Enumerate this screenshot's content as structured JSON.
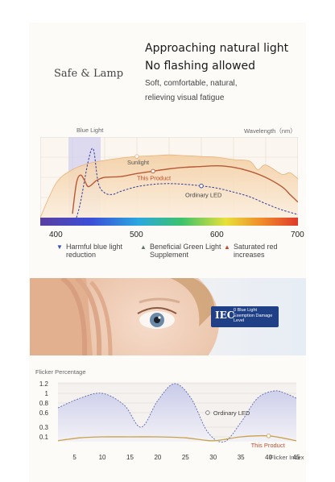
{
  "header": {
    "brand": "Safe & Lamp",
    "headline1": "Approaching natural light",
    "headline2": "No flashing allowed",
    "desc1": "Soft, comfortable, natural,",
    "desc2": "relieving visual fatigue"
  },
  "spectrum_labels": {
    "blue_light": "Blue Light",
    "wavelength": "Wavelength（nm）",
    "sunlight": "Sunlight",
    "this_product": "This Product",
    "ordinary_led": "Ordinary LED"
  },
  "legend": [
    {
      "line1": "Harmful blue light",
      "line2": "reduction",
      "color": "#3a4fb5"
    },
    {
      "line1": "Beneficial Green Light",
      "line2": "Supplement",
      "color": "#5a7a6a"
    },
    {
      "line1": "Saturated red",
      "line2": "increases",
      "color": "#c24a2a"
    }
  ],
  "iec": {
    "logo": "IEC",
    "line1": "0 Blue Light",
    "line2": "Exemption Damage",
    "line3": "Level"
  },
  "flicker_labels": {
    "ordinary_led": "Ordinary LED",
    "this_product": "This Product"
  },
  "chart_data": [
    {
      "type": "line",
      "title": "",
      "xlabel": "Wavelength（nm）",
      "ylabel": "",
      "xlim": [
        380,
        700
      ],
      "x_ticks": [
        400,
        500,
        600,
        700
      ],
      "grid": true,
      "highlight_band": {
        "label": "Blue Light",
        "x_range": [
          415,
          455
        ]
      },
      "series": [
        {
          "name": "Sunlight",
          "color": "#e8b27a",
          "x": [
            380,
            400,
            420,
            440,
            460,
            480,
            500,
            520,
            540,
            560,
            580,
            600,
            620,
            640,
            650,
            660,
            680,
            690,
            700
          ],
          "y": [
            0.0,
            0.45,
            0.62,
            0.7,
            0.74,
            0.77,
            0.79,
            0.8,
            0.81,
            0.8,
            0.79,
            0.78,
            0.75,
            0.73,
            0.62,
            0.68,
            0.56,
            0.58,
            0.5
          ]
        },
        {
          "name": "This Product",
          "color": "#b85a35",
          "x": [
            420,
            425,
            430,
            435,
            440,
            450,
            460,
            480,
            500,
            520,
            540,
            560,
            580,
            600,
            620,
            640,
            660,
            680,
            690,
            700
          ],
          "y": [
            0.05,
            0.45,
            0.55,
            0.48,
            0.4,
            0.48,
            0.52,
            0.53,
            0.57,
            0.6,
            0.63,
            0.65,
            0.66,
            0.67,
            0.65,
            0.6,
            0.52,
            0.4,
            0.3,
            0.2
          ]
        },
        {
          "name": "Ordinary LED",
          "color": "#2c3c9a",
          "x": [
            425,
            430,
            440,
            446,
            452,
            460,
            470,
            480,
            500,
            520,
            540,
            560,
            580,
            600,
            620,
            640,
            660,
            680,
            700
          ],
          "y": [
            0.0,
            0.2,
            0.75,
            0.88,
            0.45,
            0.32,
            0.3,
            0.34,
            0.4,
            0.43,
            0.44,
            0.43,
            0.41,
            0.38,
            0.33,
            0.27,
            0.18,
            0.1,
            0.04
          ]
        }
      ]
    },
    {
      "type": "line",
      "title": "",
      "ylabel": "Flicker Percentage",
      "xlabel": "Flicker Index",
      "xlim": [
        2,
        45
      ],
      "ylim": [
        0,
        1.2
      ],
      "x_ticks": [
        5,
        10,
        15,
        20,
        25,
        30,
        35,
        40,
        45
      ],
      "y_ticks": [
        0.1,
        0.3,
        0.6,
        0.8,
        1,
        1.2
      ],
      "grid": true,
      "series": [
        {
          "name": "Ordinary LED",
          "color": "#5a6ab0",
          "x": [
            2,
            6,
            10,
            14,
            17,
            20,
            23,
            26,
            29,
            32,
            35,
            38,
            41,
            43,
            45
          ],
          "y": [
            0.7,
            0.9,
            1.0,
            0.75,
            0.3,
            0.85,
            1.2,
            0.9,
            0.2,
            0.0,
            0.4,
            0.9,
            1.05,
            1.0,
            0.9
          ]
        },
        {
          "name": "This Product",
          "color": "#c9a24a",
          "x": [
            2,
            6,
            10,
            15,
            20,
            25,
            30,
            35,
            40,
            45
          ],
          "y": [
            0.02,
            0.08,
            0.1,
            0.1,
            0.1,
            0.08,
            0.02,
            0.1,
            0.12,
            0.02
          ]
        }
      ]
    }
  ]
}
